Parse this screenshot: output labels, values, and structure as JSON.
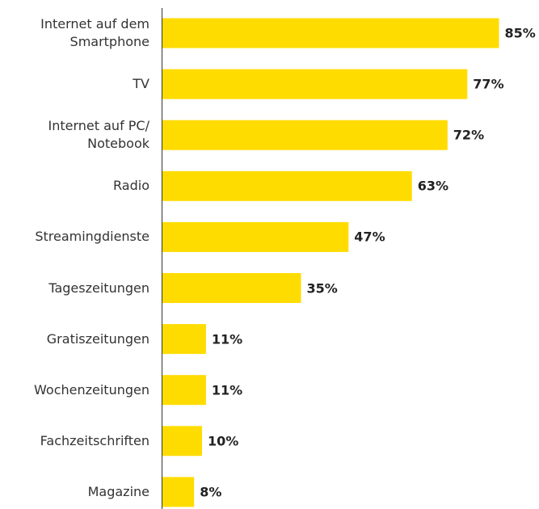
{
  "chart_data": {
    "type": "hbar",
    "orientation": "horizontal",
    "categories": [
      "Internet auf dem Smartphone",
      "TV",
      "Internet auf PC/ Notebook",
      "Radio",
      "Streamingdienste",
      "Tageszeitungen",
      "Gratiszeitungen",
      "Wochenzeitungen",
      "Fachzeitschriften",
      "Magazine"
    ],
    "values": [
      85,
      77,
      72,
      63,
      47,
      35,
      11,
      11,
      10,
      8
    ],
    "value_labels": [
      "85%",
      "77%",
      "72%",
      "63%",
      "47%",
      "35%",
      "11%",
      "11%",
      "10%",
      "8%"
    ],
    "color": "#ffdc00",
    "xlim": [
      0,
      100
    ]
  }
}
